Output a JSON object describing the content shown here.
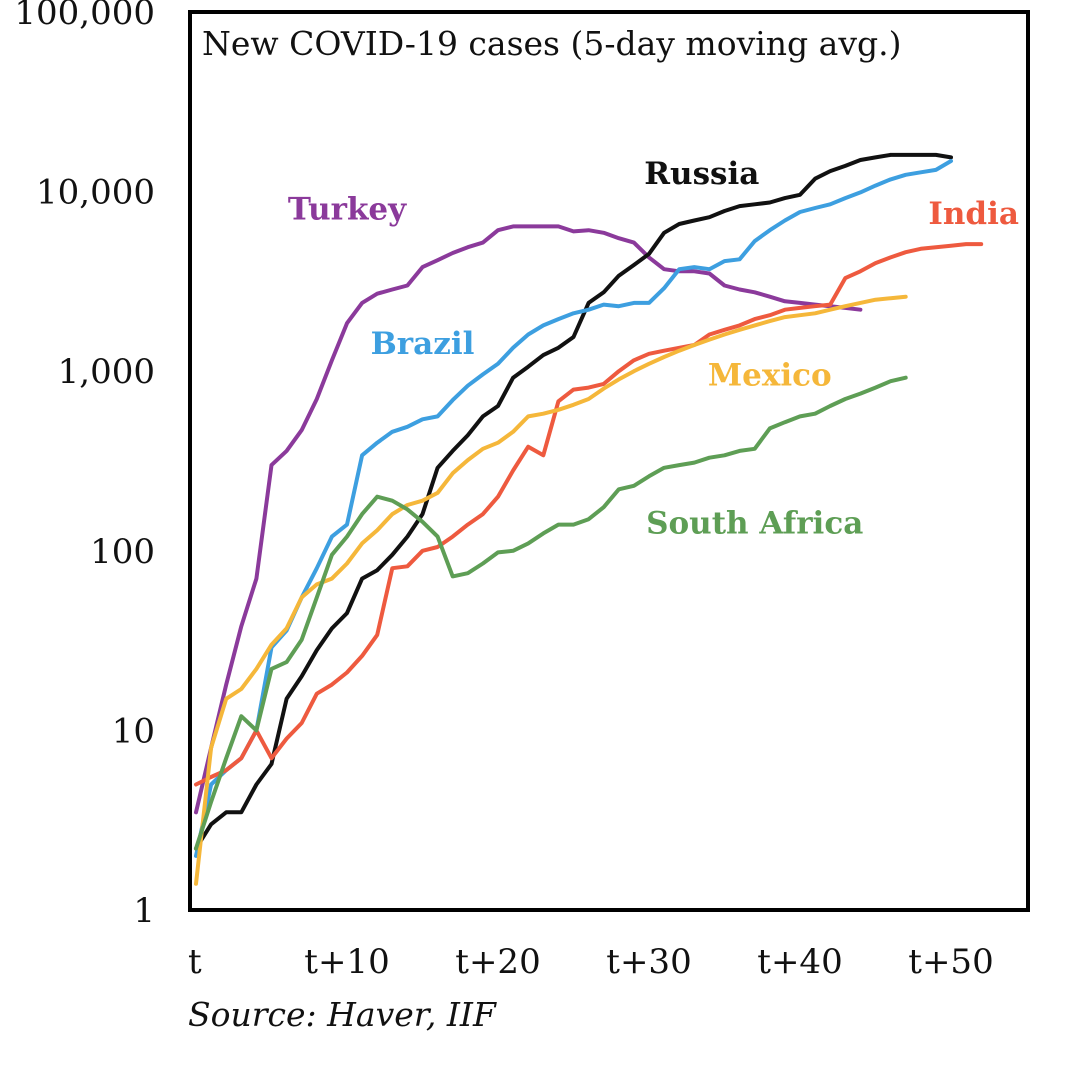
{
  "chart_data": {
    "type": "line",
    "title": "New COVID-19 cases (5-day moving avg.)",
    "source": "Source: Haver, IIF",
    "xlabel": "",
    "ylabel": "",
    "y_scale": "log",
    "ylim": [
      1,
      100000
    ],
    "xlim": [
      0,
      55
    ],
    "grid": false,
    "y_ticks": [
      {
        "value": 1,
        "label": "1"
      },
      {
        "value": 10,
        "label": "10"
      },
      {
        "value": 100,
        "label": "100"
      },
      {
        "value": 1000,
        "label": "1,000"
      },
      {
        "value": 10000,
        "label": "10,000"
      },
      {
        "value": 100000,
        "label": "100,000"
      }
    ],
    "x_ticks": [
      {
        "value": 0,
        "label": "t"
      },
      {
        "value": 10,
        "label": "t+10"
      },
      {
        "value": 20,
        "label": "t+20"
      },
      {
        "value": 30,
        "label": "t+30"
      },
      {
        "value": 40,
        "label": "t+40"
      },
      {
        "value": 50,
        "label": "t+50"
      }
    ],
    "series": [
      {
        "name": "Turkey",
        "color": "#8B3A9B",
        "label_at": [
          10,
          7000
        ],
        "points": [
          [
            0,
            3.5
          ],
          [
            1,
            8
          ],
          [
            2,
            18
          ],
          [
            3,
            38
          ],
          [
            4,
            70
          ],
          [
            5,
            300
          ],
          [
            6,
            360
          ],
          [
            7,
            470
          ],
          [
            8,
            700
          ],
          [
            9,
            1150
          ],
          [
            10,
            1850
          ],
          [
            11,
            2400
          ],
          [
            12,
            2700
          ],
          [
            13,
            2850
          ],
          [
            14,
            3000
          ],
          [
            15,
            3800
          ],
          [
            16,
            4150
          ],
          [
            17,
            4550
          ],
          [
            18,
            4900
          ],
          [
            19,
            5200
          ],
          [
            20,
            6100
          ],
          [
            21,
            6400
          ],
          [
            22,
            6400
          ],
          [
            23,
            6400
          ],
          [
            24,
            6400
          ],
          [
            25,
            6000
          ],
          [
            26,
            6100
          ],
          [
            27,
            5900
          ],
          [
            28,
            5500
          ],
          [
            29,
            5200
          ],
          [
            30,
            4300
          ],
          [
            31,
            3700
          ],
          [
            32,
            3600
          ],
          [
            33,
            3600
          ],
          [
            34,
            3500
          ],
          [
            35,
            3000
          ],
          [
            36,
            2850
          ],
          [
            37,
            2750
          ],
          [
            38,
            2600
          ],
          [
            39,
            2450
          ],
          [
            40,
            2400
          ],
          [
            41,
            2350
          ],
          [
            42,
            2300
          ],
          [
            43,
            2250
          ],
          [
            44,
            2200
          ]
        ]
      },
      {
        "name": "Russia",
        "color": "#111111",
        "label_at": [
          33.5,
          11000
        ],
        "points": [
          [
            0,
            2.2
          ],
          [
            1,
            3
          ],
          [
            2,
            3.5
          ],
          [
            3,
            3.5
          ],
          [
            4,
            5
          ],
          [
            5,
            6.5
          ],
          [
            6,
            15
          ],
          [
            7,
            20
          ],
          [
            8,
            28
          ],
          [
            9,
            37
          ],
          [
            10,
            45
          ],
          [
            11,
            70
          ],
          [
            12,
            78
          ],
          [
            13,
            95
          ],
          [
            14,
            120
          ],
          [
            15,
            160
          ],
          [
            16,
            290
          ],
          [
            17,
            360
          ],
          [
            18,
            440
          ],
          [
            19,
            560
          ],
          [
            20,
            640
          ],
          [
            21,
            920
          ],
          [
            22,
            1060
          ],
          [
            23,
            1230
          ],
          [
            24,
            1350
          ],
          [
            25,
            1550
          ],
          [
            26,
            2400
          ],
          [
            27,
            2750
          ],
          [
            28,
            3400
          ],
          [
            29,
            3900
          ],
          [
            30,
            4500
          ],
          [
            31,
            5900
          ],
          [
            32,
            6600
          ],
          [
            33,
            6900
          ],
          [
            34,
            7200
          ],
          [
            35,
            7800
          ],
          [
            36,
            8300
          ],
          [
            37,
            8500
          ],
          [
            38,
            8700
          ],
          [
            39,
            9200
          ],
          [
            40,
            9600
          ],
          [
            41,
            11800
          ],
          [
            42,
            13000
          ],
          [
            43,
            13900
          ],
          [
            44,
            15000
          ],
          [
            45,
            15500
          ],
          [
            46,
            16000
          ],
          [
            47,
            16000
          ],
          [
            48,
            16000
          ],
          [
            49,
            16000
          ],
          [
            50,
            15500
          ]
        ]
      },
      {
        "name": "Brazil",
        "color": "#3D9FE0",
        "label_at": [
          15,
          1250
        ],
        "points": [
          [
            0,
            2
          ],
          [
            1,
            5
          ],
          [
            2,
            6
          ],
          [
            3,
            7
          ],
          [
            4,
            10
          ],
          [
            5,
            29
          ],
          [
            6,
            36
          ],
          [
            7,
            55
          ],
          [
            8,
            80
          ],
          [
            9,
            120
          ],
          [
            10,
            140
          ],
          [
            11,
            340
          ],
          [
            12,
            400
          ],
          [
            13,
            460
          ],
          [
            14,
            490
          ],
          [
            15,
            540
          ],
          [
            16,
            560
          ],
          [
            17,
            690
          ],
          [
            18,
            830
          ],
          [
            19,
            960
          ],
          [
            20,
            1100
          ],
          [
            21,
            1350
          ],
          [
            22,
            1600
          ],
          [
            23,
            1800
          ],
          [
            24,
            1950
          ],
          [
            25,
            2100
          ],
          [
            26,
            2200
          ],
          [
            27,
            2350
          ],
          [
            28,
            2300
          ],
          [
            29,
            2400
          ],
          [
            30,
            2400
          ],
          [
            31,
            2900
          ],
          [
            32,
            3700
          ],
          [
            33,
            3800
          ],
          [
            34,
            3700
          ],
          [
            35,
            4100
          ],
          [
            36,
            4200
          ],
          [
            37,
            5300
          ],
          [
            38,
            6100
          ],
          [
            39,
            6900
          ],
          [
            40,
            7700
          ],
          [
            41,
            8100
          ],
          [
            42,
            8500
          ],
          [
            43,
            9200
          ],
          [
            44,
            9900
          ],
          [
            45,
            10800
          ],
          [
            46,
            11700
          ],
          [
            47,
            12400
          ],
          [
            48,
            12800
          ],
          [
            49,
            13200
          ],
          [
            50,
            14800
          ]
        ]
      },
      {
        "name": "India",
        "color": "#EE5A3F",
        "label_at": [
          51.5,
          6600
        ],
        "points": [
          [
            0,
            5
          ],
          [
            1,
            5.5
          ],
          [
            2,
            6
          ],
          [
            3,
            7
          ],
          [
            4,
            10
          ],
          [
            5,
            7
          ],
          [
            6,
            9
          ],
          [
            7,
            11
          ],
          [
            8,
            16
          ],
          [
            9,
            18
          ],
          [
            10,
            21
          ],
          [
            11,
            26
          ],
          [
            12,
            34
          ],
          [
            13,
            80
          ],
          [
            14,
            82
          ],
          [
            15,
            100
          ],
          [
            16,
            105
          ],
          [
            17,
            120
          ],
          [
            18,
            140
          ],
          [
            19,
            160
          ],
          [
            20,
            200
          ],
          [
            21,
            280
          ],
          [
            22,
            380
          ],
          [
            23,
            340
          ],
          [
            24,
            680
          ],
          [
            25,
            790
          ],
          [
            26,
            810
          ],
          [
            27,
            850
          ],
          [
            28,
            1000
          ],
          [
            29,
            1150
          ],
          [
            30,
            1250
          ],
          [
            31,
            1300
          ],
          [
            32,
            1350
          ],
          [
            33,
            1400
          ],
          [
            34,
            1600
          ],
          [
            35,
            1700
          ],
          [
            36,
            1800
          ],
          [
            37,
            1950
          ],
          [
            38,
            2050
          ],
          [
            39,
            2200
          ],
          [
            40,
            2250
          ],
          [
            41,
            2300
          ],
          [
            42,
            2350
          ],
          [
            43,
            3300
          ],
          [
            44,
            3600
          ],
          [
            45,
            4000
          ],
          [
            46,
            4300
          ],
          [
            47,
            4600
          ],
          [
            48,
            4800
          ],
          [
            49,
            4900
          ],
          [
            50,
            5000
          ],
          [
            51,
            5100
          ],
          [
            52,
            5100
          ]
        ]
      },
      {
        "name": "Mexico",
        "color": "#F5B73A",
        "label_at": [
          38,
          830
        ],
        "points": [
          [
            0,
            1.4
          ],
          [
            1,
            8
          ],
          [
            2,
            15
          ],
          [
            3,
            17
          ],
          [
            4,
            22
          ],
          [
            5,
            30
          ],
          [
            6,
            37
          ],
          [
            7,
            55
          ],
          [
            8,
            65
          ],
          [
            9,
            70
          ],
          [
            10,
            85
          ],
          [
            11,
            110
          ],
          [
            12,
            130
          ],
          [
            13,
            160
          ],
          [
            14,
            180
          ],
          [
            15,
            190
          ],
          [
            16,
            210
          ],
          [
            17,
            270
          ],
          [
            18,
            320
          ],
          [
            19,
            370
          ],
          [
            20,
            400
          ],
          [
            21,
            460
          ],
          [
            22,
            560
          ],
          [
            23,
            580
          ],
          [
            24,
            610
          ],
          [
            25,
            650
          ],
          [
            26,
            700
          ],
          [
            27,
            800
          ],
          [
            28,
            900
          ],
          [
            29,
            1000
          ],
          [
            30,
            1100
          ],
          [
            31,
            1200
          ],
          [
            32,
            1300
          ],
          [
            33,
            1400
          ],
          [
            34,
            1500
          ],
          [
            35,
            1600
          ],
          [
            36,
            1700
          ],
          [
            37,
            1800
          ],
          [
            38,
            1900
          ],
          [
            39,
            2000
          ],
          [
            40,
            2050
          ],
          [
            41,
            2100
          ],
          [
            42,
            2200
          ],
          [
            43,
            2300
          ],
          [
            44,
            2400
          ],
          [
            45,
            2500
          ],
          [
            46,
            2550
          ],
          [
            47,
            2600
          ]
        ]
      },
      {
        "name": "South Africa",
        "color": "#5E9E55",
        "label_at": [
          37,
          125
        ],
        "points": [
          [
            0,
            2.2
          ],
          [
            1,
            4
          ],
          [
            2,
            7
          ],
          [
            3,
            12
          ],
          [
            4,
            10
          ],
          [
            5,
            22
          ],
          [
            6,
            24
          ],
          [
            7,
            32
          ],
          [
            8,
            55
          ],
          [
            9,
            95
          ],
          [
            10,
            120
          ],
          [
            11,
            160
          ],
          [
            12,
            200
          ],
          [
            13,
            190
          ],
          [
            14,
            170
          ],
          [
            15,
            145
          ],
          [
            16,
            120
          ],
          [
            17,
            72
          ],
          [
            18,
            75
          ],
          [
            19,
            85
          ],
          [
            20,
            98
          ],
          [
            21,
            100
          ],
          [
            22,
            110
          ],
          [
            23,
            125
          ],
          [
            24,
            140
          ],
          [
            25,
            140
          ],
          [
            26,
            150
          ],
          [
            27,
            175
          ],
          [
            28,
            220
          ],
          [
            29,
            230
          ],
          [
            30,
            260
          ],
          [
            31,
            290
          ],
          [
            32,
            300
          ],
          [
            33,
            310
          ],
          [
            34,
            330
          ],
          [
            35,
            340
          ],
          [
            36,
            360
          ],
          [
            37,
            370
          ],
          [
            38,
            480
          ],
          [
            39,
            520
          ],
          [
            40,
            560
          ],
          [
            41,
            580
          ],
          [
            42,
            640
          ],
          [
            43,
            700
          ],
          [
            44,
            750
          ],
          [
            45,
            810
          ],
          [
            46,
            880
          ],
          [
            47,
            920
          ]
        ]
      }
    ]
  }
}
